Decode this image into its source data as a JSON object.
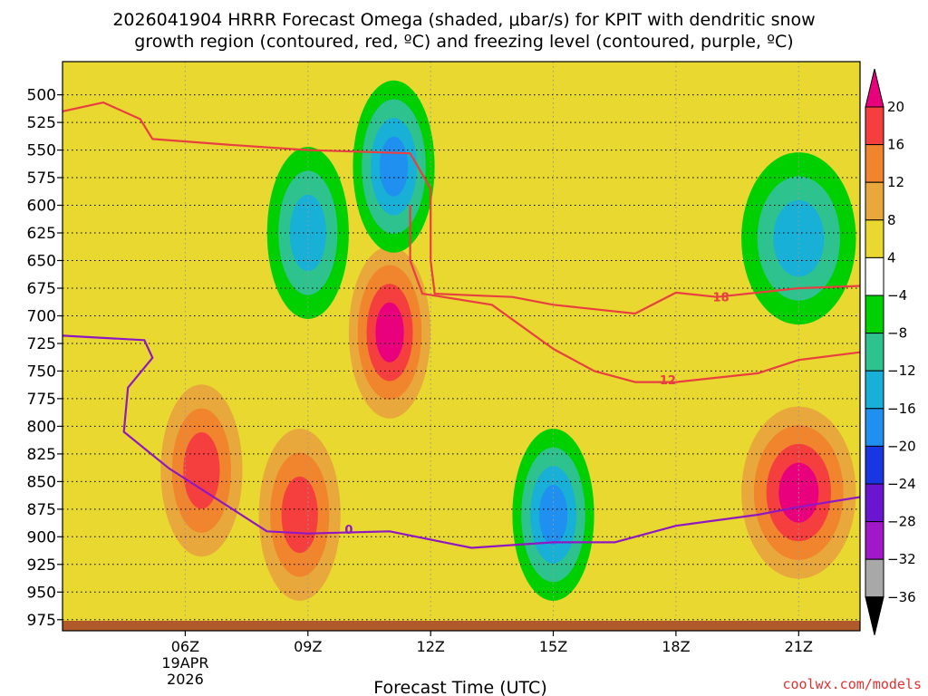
{
  "chart_data": {
    "type": "heatmap",
    "title_line1": "2026041904 HRRR Forecast Omega (shaded, μbar/s) for KPIT with dendritic snow",
    "title_line2": "growth region (contoured, red, ºC) and freezing level (contoured, purple, ºC)",
    "xlabel": "Forecast Time (UTC)",
    "credit": "coolwx.com/models",
    "x_range_hours": [
      3,
      22.5
    ],
    "y_range_hpa": [
      470,
      985
    ],
    "x_ticks": [
      {
        "label": "06Z",
        "hour": 6,
        "sub1": "19APR",
        "sub2": "2026"
      },
      {
        "label": "09Z",
        "hour": 9
      },
      {
        "label": "12Z",
        "hour": 12
      },
      {
        "label": "15Z",
        "hour": 15
      },
      {
        "label": "18Z",
        "hour": 18
      },
      {
        "label": "21Z",
        "hour": 21
      }
    ],
    "y_ticks": [
      "500",
      "525",
      "550",
      "575",
      "600",
      "625",
      "650",
      "675",
      "700",
      "725",
      "750",
      "775",
      "800",
      "825",
      "850",
      "875",
      "900",
      "925",
      "950",
      "975"
    ],
    "colorbar": {
      "bins": [
        {
          "min": 20,
          "max": 24,
          "color": "#e8007d"
        },
        {
          "min": 16,
          "max": 20,
          "color": "#f53f3f"
        },
        {
          "min": 12,
          "max": 16,
          "color": "#f0852e"
        },
        {
          "min": 8,
          "max": 12,
          "color": "#e8a83c"
        },
        {
          "min": 4,
          "max": 8,
          "color": "#e8d830"
        },
        {
          "min": -4,
          "max": 4,
          "color": "#ffffff"
        },
        {
          "min": -8,
          "max": -4,
          "color": "#00d000"
        },
        {
          "min": -12,
          "max": -8,
          "color": "#2ec28e"
        },
        {
          "min": -16,
          "max": -12,
          "color": "#19b0d8"
        },
        {
          "min": -20,
          "max": -16,
          "color": "#2090f0"
        },
        {
          "min": -24,
          "max": -20,
          "color": "#1a36e0"
        },
        {
          "min": -28,
          "max": -24,
          "color": "#6a16d0"
        },
        {
          "min": -32,
          "max": -28,
          "color": "#a018c8"
        },
        {
          "min": -36,
          "max": -32,
          "color": "#a8a8a8"
        },
        {
          "min": -40,
          "max": -36,
          "color": "#000000"
        }
      ],
      "labels": [
        "20",
        "16",
        "12",
        "8",
        "4",
        "−4",
        "−8",
        "−12",
        "−16",
        "−20",
        "−24",
        "−28",
        "−32",
        "−36"
      ]
    },
    "omega_features": [
      {
        "name": "positive-omega-06z-low-levels",
        "hour": 6.4,
        "p": 840,
        "peak": 18
      },
      {
        "name": "positive-omega-09z-low-levels",
        "hour": 8.8,
        "p": 880,
        "peak": 19
      },
      {
        "name": "positive-omega-11z-mid-levels",
        "hour": 11.0,
        "p": 715,
        "peak": 22
      },
      {
        "name": "positive-omega-21z-low-levels",
        "hour": 21.0,
        "p": 860,
        "peak": 23
      },
      {
        "name": "negative-omega-11z-upper-levels",
        "hour": 11.1,
        "p": 565,
        "peak": -18
      },
      {
        "name": "negative-omega-09z-upper-levels",
        "hour": 9.0,
        "p": 625,
        "peak": -13
      },
      {
        "name": "negative-omega-15z-low-levels",
        "hour": 15.0,
        "p": 880,
        "peak": -18
      },
      {
        "name": "negative-omega-21z-mid-levels",
        "hour": 21.0,
        "p": 630,
        "peak": -12
      }
    ],
    "series": [
      {
        "name": "dendritic -18 ºC isotherm",
        "color": "#e84040",
        "label": "18",
        "label_at": {
          "hour": 19.1,
          "p": 683
        },
        "points": [
          [
            3.0,
            515
          ],
          [
            4.0,
            507
          ],
          [
            4.9,
            522
          ],
          [
            5.2,
            540
          ],
          [
            7.0,
            545
          ],
          [
            9.0,
            550
          ],
          [
            11.5,
            553
          ],
          [
            12.0,
            585
          ],
          [
            12.0,
            650
          ],
          [
            12.1,
            680
          ],
          [
            14.0,
            683
          ],
          [
            15.0,
            690
          ],
          [
            17.0,
            698
          ],
          [
            18.0,
            679
          ],
          [
            19.0,
            683
          ],
          [
            21.0,
            675
          ],
          [
            22.5,
            673
          ]
        ]
      },
      {
        "name": "dendritic -12 ºC isotherm",
        "color": "#e84040",
        "label": "12",
        "label_at": {
          "hour": 17.8,
          "p": 758
        },
        "points": [
          [
            11.5,
            600
          ],
          [
            11.5,
            650
          ],
          [
            11.8,
            680
          ],
          [
            13.5,
            690
          ],
          [
            15.0,
            730
          ],
          [
            16.0,
            750
          ],
          [
            17.0,
            760
          ],
          [
            18.0,
            760
          ],
          [
            20.0,
            752
          ],
          [
            21.0,
            740
          ],
          [
            22.5,
            733
          ]
        ]
      },
      {
        "name": "freezing level 0 ºC",
        "color": "#9018c0",
        "label": "0",
        "label_at": {
          "hour": 10.0,
          "p": 893
        },
        "points": [
          [
            3.0,
            718
          ],
          [
            4.0,
            720
          ],
          [
            5.0,
            722
          ],
          [
            5.2,
            738
          ],
          [
            4.6,
            765
          ],
          [
            4.5,
            805
          ],
          [
            5.6,
            838
          ],
          [
            8.0,
            895
          ],
          [
            9.0,
            897
          ],
          [
            11.0,
            895
          ],
          [
            13.0,
            910
          ],
          [
            15.0,
            905
          ],
          [
            16.5,
            905
          ],
          [
            18.0,
            890
          ],
          [
            20.0,
            880
          ],
          [
            21.0,
            873
          ],
          [
            22.5,
            864
          ]
        ]
      }
    ],
    "terrain_color": "#b05a2c"
  }
}
